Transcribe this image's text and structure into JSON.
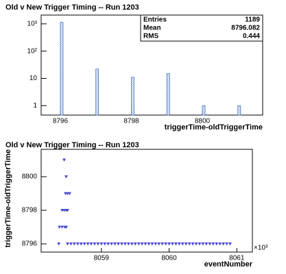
{
  "chart_data": [
    {
      "type": "bar",
      "title": "Old v New Trigger Timing -- Run 1203",
      "x_label": "triggerTime-oldTriggerTime",
      "x": [
        8796,
        8797,
        8798,
        8799,
        8800,
        8801
      ],
      "values": [
        1139,
        22,
        11,
        15,
        1,
        1
      ],
      "color": "#3f6fc4",
      "xlim": [
        8795.46,
        8801.7
      ],
      "xticks": [
        8796,
        8798,
        8800
      ],
      "ylim": [
        0.45,
        2100
      ],
      "yticks": [
        1,
        10,
        {
          "value": 100,
          "label": "10²"
        },
        {
          "value": 1000,
          "label": "10³"
        }
      ],
      "log_y": true,
      "stats_box": [
        {
          "label": "Entries",
          "value": 1189
        },
        {
          "label": "Mean",
          "value": 8796.082
        },
        {
          "label": "RMS",
          "value": 0.444
        }
      ]
    },
    {
      "type": "scatter",
      "title": "Old v New Trigger Timing -- Run 1203",
      "x_label": "eventNumber",
      "y_label": "triggerTime-oldTriggerTime",
      "x_exponent_label": "×10³",
      "color": "#4a4ad0",
      "xlim": [
        8058110,
        8061230
      ],
      "xticks": [
        {
          "value": 8059000,
          "label": "8059"
        },
        {
          "value": 8060000,
          "label": "8060"
        },
        {
          "value": 8061000,
          "label": "8061"
        }
      ],
      "ylim": [
        8795.51,
        8801.63
      ],
      "yticks": [
        8796,
        8798,
        8800
      ],
      "x_values": [
        8058370,
        8058500,
        8058550,
        8058600,
        8058650,
        8058700,
        8058750,
        8058800,
        8058850,
        8058900,
        8058950,
        8059000,
        8059050,
        8059100,
        8059150,
        8059200,
        8059250,
        8059300,
        8059350,
        8059400,
        8059450,
        8059500,
        8059550,
        8059600,
        8059650,
        8059700,
        8059750,
        8059800,
        8059850,
        8059900,
        8059950,
        8060000,
        8060050,
        8060100,
        8060150,
        8060200,
        8060250,
        8060300,
        8060350,
        8060400,
        8060450,
        8060500,
        8060550,
        8060600,
        8060650,
        8060700,
        8060750,
        8060800,
        8060850,
        8060900,
        8058380,
        8058420,
        8058460,
        8058480,
        8058420,
        8058450,
        8058480,
        8058500,
        8058470,
        8058500,
        8058530,
        8058480,
        8058450
      ],
      "y_values": [
        8796,
        8796,
        8796,
        8796,
        8796,
        8796,
        8796,
        8796,
        8796,
        8796,
        8796,
        8796,
        8796,
        8796,
        8796,
        8796,
        8796,
        8796,
        8796,
        8796,
        8796,
        8796,
        8796,
        8796,
        8796,
        8796,
        8796,
        8796,
        8796,
        8796,
        8796,
        8796,
        8796,
        8796,
        8796,
        8796,
        8796,
        8796,
        8796,
        8796,
        8796,
        8796,
        8796,
        8796,
        8796,
        8796,
        8796,
        8796,
        8796,
        8796,
        8797,
        8797,
        8797,
        8797,
        8798,
        8798,
        8798,
        8798,
        8799,
        8799,
        8799,
        8800,
        8801
      ]
    }
  ]
}
